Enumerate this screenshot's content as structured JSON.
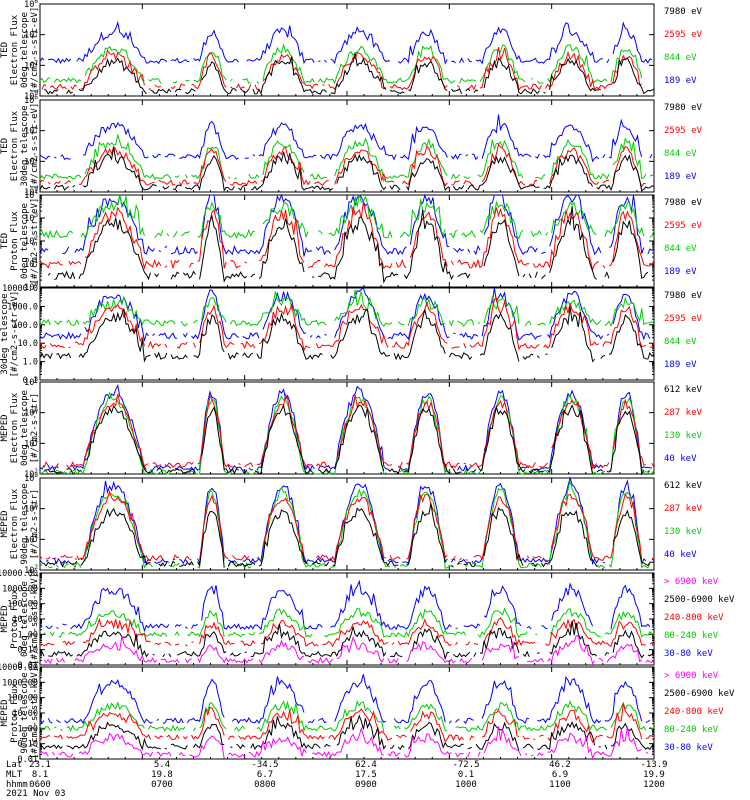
{
  "date_label": "2021 Nov 03",
  "footer": {
    "row_labels": [
      "Lat",
      "MLT",
      "hhmm"
    ],
    "lat": [
      "23.1",
      "5.4",
      "-34.5",
      "62.4",
      "-72.5",
      "46.2",
      "-13.9"
    ],
    "mlt": [
      "8.1",
      "19.8",
      "6.7",
      "17.5",
      "0.1",
      "6.9",
      "19.9"
    ],
    "hhmm": [
      "0600",
      "0700",
      "0800",
      "0900",
      "1000",
      "1100",
      "1200"
    ]
  },
  "colors": {
    "black": "#000000",
    "red": "#ff0000",
    "green": "#00cc00",
    "blue": "#0000ff",
    "magenta": "#ff00ff"
  },
  "chart_data": [
    {
      "type": "line",
      "ylabel": [
        "TED",
        "Electron Flux",
        "0deg telescope",
        "[#/cm2-s-str-eV]"
      ],
      "yscale": "log",
      "ylim": [
        1,
        1000000
      ],
      "yticks": [
        "10^0",
        "10^2",
        "10^4",
        "10^6"
      ],
      "x": [
        "0600",
        "0700",
        "0800",
        "0900",
        "1000",
        "1100",
        "1200"
      ],
      "series": [
        {
          "name": "7980 eV",
          "color": "black",
          "baseline_log": 0.3,
          "peak_log": 2.2
        },
        {
          "name": "2595 eV",
          "color": "red",
          "baseline_log": 0.6,
          "peak_log": 2.6
        },
        {
          "name": "844 eV",
          "color": "green",
          "baseline_log": 1.0,
          "peak_log": 3.1
        },
        {
          "name": "189 eV",
          "color": "blue",
          "baseline_log": 2.3,
          "peak_log": 4.2
        }
      ]
    },
    {
      "type": "line",
      "ylabel": [
        "TED",
        "Electron Flux",
        "30deg telescope",
        "[#/cm2-s-str-eV]"
      ],
      "yscale": "log",
      "ylim": [
        1,
        1000000
      ],
      "yticks": [
        "10^0",
        "10^2",
        "10^4",
        "10^6"
      ],
      "x": [
        "0600",
        "0700",
        "0800",
        "0900",
        "1000",
        "1100",
        "1200"
      ],
      "series": [
        {
          "name": "7980 eV",
          "color": "black",
          "baseline_log": 0.3,
          "peak_log": 2.2
        },
        {
          "name": "2595 eV",
          "color": "red",
          "baseline_log": 0.6,
          "peak_log": 2.7
        },
        {
          "name": "844 eV",
          "color": "green",
          "baseline_log": 1.0,
          "peak_log": 3.2
        },
        {
          "name": "189 eV",
          "color": "blue",
          "baseline_log": 2.3,
          "peak_log": 4.3
        }
      ]
    },
    {
      "type": "line",
      "ylabel": [
        "TED",
        "Proton Flux",
        "0deg telescope",
        "[#/cm2-s-str-eV]"
      ],
      "yscale": "log",
      "ylim": [
        1,
        10000
      ],
      "yticks": [
        "10^0",
        "10^1",
        "10^2",
        "10^3",
        "10^4"
      ],
      "x": [
        "0600",
        "0700",
        "0800",
        "0900",
        "1000",
        "1100",
        "1200"
      ],
      "series": [
        {
          "name": "7980 eV",
          "color": "black",
          "baseline_log": 0.5,
          "peak_log": 2.8
        },
        {
          "name": "2595 eV",
          "color": "red",
          "baseline_log": 1.0,
          "peak_log": 3.2
        },
        {
          "name": "844 eV",
          "color": "green",
          "baseline_log": 2.3,
          "peak_log": 3.5
        },
        {
          "name": "189 eV",
          "color": "blue",
          "baseline_log": 1.6,
          "peak_log": 3.9
        }
      ]
    },
    {
      "type": "line",
      "ylabel": [
        "",
        "",
        "30deg telescope",
        "[#/cm2-s-str-eV]"
      ],
      "yscale": "log",
      "ylim": [
        0.1,
        10000
      ],
      "yticks": [
        "0.1",
        "1.0",
        "10.0",
        "100.0",
        "1000.0",
        "10000.0"
      ],
      "x": [
        "0600",
        "0700",
        "0800",
        "0900",
        "1000",
        "1100",
        "1200"
      ],
      "series": [
        {
          "name": "7980 eV",
          "color": "black",
          "baseline_log": 0.3,
          "peak_log": 2.4
        },
        {
          "name": "2595 eV",
          "color": "red",
          "baseline_log": 0.9,
          "peak_log": 2.9
        },
        {
          "name": "844 eV",
          "color": "green",
          "baseline_log": 2.1,
          "peak_log": 3.2
        },
        {
          "name": "189 eV",
          "color": "blue",
          "baseline_log": 1.4,
          "peak_log": 3.6
        }
      ]
    },
    {
      "type": "line",
      "ylabel": [
        "MEPED",
        "Electron Flux",
        "0deg telescope",
        "[#/cm2-s-str]"
      ],
      "yscale": "log",
      "ylim": [
        100,
        100000000
      ],
      "yticks": [
        "10^2",
        "10^4",
        "10^6",
        "10^8"
      ],
      "x": [
        "0600",
        "0700",
        "0800",
        "0900",
        "1000",
        "1100",
        "1200"
      ],
      "series": [
        {
          "name": "612 keV",
          "color": "black",
          "baseline_log": 2.2,
          "peak_log": 6.2
        },
        {
          "name": "287 keV",
          "color": "red",
          "baseline_log": 2.6,
          "peak_log": 6.6
        },
        {
          "name": "130 keV",
          "color": "green",
          "baseline_log": 2.1,
          "peak_log": 6.9
        },
        {
          "name": "40 keV",
          "color": "blue",
          "baseline_log": 2.4,
          "peak_log": 7.3
        }
      ]
    },
    {
      "type": "line",
      "ylabel": [
        "MEPED",
        "Electron Flux",
        "90deg telescope",
        "[#/cm2-s-str]"
      ],
      "yscale": "log",
      "ylim": [
        100,
        100000000
      ],
      "yticks": [
        "10^2",
        "10^4",
        "10^6",
        "10^8"
      ],
      "x": [
        "0600",
        "0700",
        "0800",
        "0900",
        "1000",
        "1100",
        "1200"
      ],
      "series": [
        {
          "name": "612 keV",
          "color": "black",
          "baseline_log": 2.4,
          "peak_log": 5.8
        },
        {
          "name": "287 keV",
          "color": "red",
          "baseline_log": 2.8,
          "peak_log": 6.7
        },
        {
          "name": "130 keV",
          "color": "green",
          "baseline_log": 2.3,
          "peak_log": 7.1
        },
        {
          "name": "40 keV",
          "color": "blue",
          "baseline_log": 2.6,
          "peak_log": 7.5
        }
      ]
    },
    {
      "type": "line",
      "ylabel": [
        "MEPED",
        "Proton Flux",
        "0deg telescope",
        "[#/cm2-s-str-keV]"
      ],
      "yscale": "log",
      "ylim": [
        0.01,
        10000
      ],
      "yticks": [
        "0.01",
        "0.10",
        "1.00",
        "10.00",
        "100.00",
        "1000.00",
        "10000.00"
      ],
      "x": [
        "0600",
        "0700",
        "0800",
        "0900",
        "1000",
        "1100",
        "1200"
      ],
      "series": [
        {
          "name": "> 6900 keV",
          "color": "magenta",
          "baseline_log": -1.7,
          "peak_log": -0.7
        },
        {
          "name": "2500-6900 keV",
          "color": "black",
          "baseline_log": -1.3,
          "peak_log": 0.1
        },
        {
          "name": "240-800 keV",
          "color": "red",
          "baseline_log": -0.6,
          "peak_log": 0.7
        },
        {
          "name": "80-240 keV",
          "color": "green",
          "baseline_log": 0.0,
          "peak_log": 1.4
        },
        {
          "name": "30-80 keV",
          "color": "blue",
          "baseline_log": 0.5,
          "peak_log": 2.9
        }
      ]
    },
    {
      "type": "line",
      "ylabel": [
        "MEPED",
        "Proton Flux",
        "90deg telescope",
        "[#/cm2-s-str-keV]"
      ],
      "yscale": "log",
      "ylim": [
        0.01,
        10000
      ],
      "yticks": [
        "0.01",
        "0.10",
        "1.00",
        "10.00",
        "100.00",
        "1000.00",
        "10000.00"
      ],
      "x": [
        "0600",
        "0700",
        "0800",
        "0900",
        "1000",
        "1100",
        "1200"
      ],
      "series": [
        {
          "name": "> 6900 keV",
          "color": "magenta",
          "baseline_log": -1.7,
          "peak_log": -0.6
        },
        {
          "name": "2500-6900 keV",
          "color": "black",
          "baseline_log": -1.2,
          "peak_log": 0.2
        },
        {
          "name": "240-800 keV",
          "color": "red",
          "baseline_log": -0.6,
          "peak_log": 0.9
        },
        {
          "name": "80-240 keV",
          "color": "green",
          "baseline_log": 0.0,
          "peak_log": 1.5
        },
        {
          "name": "30-80 keV",
          "color": "blue",
          "baseline_log": 0.5,
          "peak_log": 3.0
        }
      ]
    }
  ]
}
